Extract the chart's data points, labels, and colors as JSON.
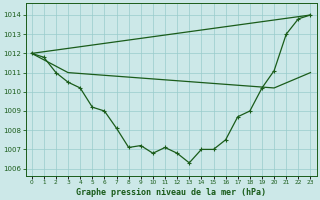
{
  "line1_x": [
    0,
    1,
    2,
    3,
    4,
    5,
    6,
    7,
    8,
    9,
    10,
    11,
    12,
    13,
    14,
    15,
    16,
    17,
    18,
    19,
    20,
    21,
    22,
    23
  ],
  "line1_y": [
    1012.0,
    1011.8,
    1011.0,
    1010.5,
    1010.2,
    1009.2,
    1009.0,
    1008.1,
    1007.1,
    1007.2,
    1006.8,
    1007.1,
    1006.8,
    1006.3,
    1007.0,
    1007.0,
    1007.5,
    1008.7,
    1009.0,
    1010.2,
    1011.1,
    1013.0,
    1013.8,
    1014.0
  ],
  "line2_x": [
    0,
    23
  ],
  "line2_y": [
    1012.0,
    1014.0
  ],
  "line3_x": [
    0,
    3,
    20,
    23
  ],
  "line3_y": [
    1012.0,
    1011.0,
    1010.2,
    1011.0
  ],
  "color": "#1a5c1a",
  "bg_color": "#cce8e8",
  "grid_color": "#99cccc",
  "title": "Graphe pression niveau de la mer (hPa)",
  "xtick_labels": [
    "0",
    "1",
    "2",
    "3",
    "4",
    "5",
    "6",
    "7",
    "8",
    "9",
    "10",
    "11",
    "12",
    "13",
    "14",
    "15",
    "16",
    "17",
    "18",
    "19",
    "20",
    "21",
    "22",
    "23"
  ],
  "ytick_min": 1006,
  "ytick_max": 1014,
  "xlim": [
    -0.5,
    23.5
  ],
  "ylim": [
    1005.6,
    1014.6
  ]
}
